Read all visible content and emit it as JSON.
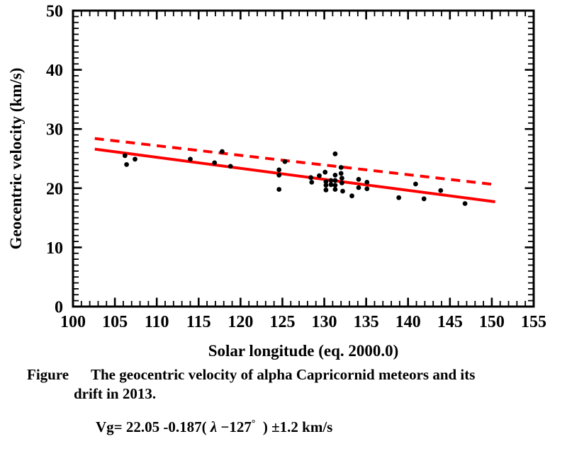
{
  "chart_data": {
    "type": "scatter",
    "xlabel": "Solar longitude (eq. 2000.0)",
    "ylabel": "Geocentric velocity (km/s)",
    "xlim": [
      100,
      155
    ],
    "ylim": [
      0,
      50
    ],
    "x_major_step": 5,
    "x_minor_step": 1,
    "y_major_step": 10,
    "y_minor_step": 1,
    "x_tick_labels": [
      "100",
      "105",
      "110",
      "115",
      "120",
      "125",
      "130",
      "135",
      "140",
      "145",
      "150",
      "155"
    ],
    "y_tick_labels": [
      "0",
      "10",
      "20",
      "30",
      "40",
      "50"
    ],
    "grid": false,
    "legend": "none",
    "marker": {
      "shape": "circle",
      "color": "#000000"
    },
    "points": [
      [
        106.2,
        25.5
      ],
      [
        106.4,
        24.0
      ],
      [
        107.4,
        24.9
      ],
      [
        114.0,
        24.9
      ],
      [
        116.9,
        24.3
      ],
      [
        117.8,
        26.2
      ],
      [
        118.8,
        23.7
      ],
      [
        124.6,
        23.1
      ],
      [
        124.6,
        22.2
      ],
      [
        124.6,
        19.8
      ],
      [
        125.3,
        24.5
      ],
      [
        128.4,
        21.8
      ],
      [
        128.5,
        21.0
      ],
      [
        129.4,
        22.1
      ],
      [
        130.1,
        22.7
      ],
      [
        130.2,
        21.1
      ],
      [
        130.2,
        20.5
      ],
      [
        130.2,
        19.7
      ],
      [
        130.8,
        21.3
      ],
      [
        130.8,
        20.6
      ],
      [
        131.3,
        25.8
      ],
      [
        131.3,
        22.2
      ],
      [
        131.3,
        21.3
      ],
      [
        131.3,
        20.5
      ],
      [
        131.3,
        19.8
      ],
      [
        132.0,
        23.5
      ],
      [
        132.0,
        22.5
      ],
      [
        132.1,
        21.7
      ],
      [
        132.1,
        20.9
      ],
      [
        132.2,
        19.5
      ],
      [
        133.3,
        18.7
      ],
      [
        134.1,
        21.5
      ],
      [
        134.1,
        20.1
      ],
      [
        135.1,
        21.0
      ],
      [
        135.1,
        19.9
      ],
      [
        138.9,
        18.4
      ],
      [
        140.9,
        20.7
      ],
      [
        141.9,
        18.2
      ],
      [
        143.9,
        19.6
      ],
      [
        146.8,
        17.4
      ]
    ],
    "lines": [
      {
        "name": "fit-line",
        "style": "solid",
        "color": "#ff0000",
        "points": [
          [
            102.6,
            26.6
          ],
          [
            127.0,
            22.05
          ],
          [
            150.4,
            17.7
          ]
        ]
      },
      {
        "name": "upper-dashed-line",
        "style": "dashed",
        "color": "#ff0000",
        "points": [
          [
            102.6,
            28.4
          ],
          [
            127.0,
            24.4
          ],
          [
            150.4,
            20.6
          ]
        ]
      }
    ],
    "axis_color": "#000000",
    "background": "#ffffff"
  },
  "caption": {
    "label": "Figure",
    "line1": "The geocentric velocity of alpha Capricornid meteors and its",
    "line2": "drift in 2013."
  },
  "equation": {
    "p1": "Vg= 22.05 -0.187( ",
    "lambda": "λ",
    "p2": " −127",
    "degree": "°",
    "p3": "  ) ±1.2 km/s"
  }
}
